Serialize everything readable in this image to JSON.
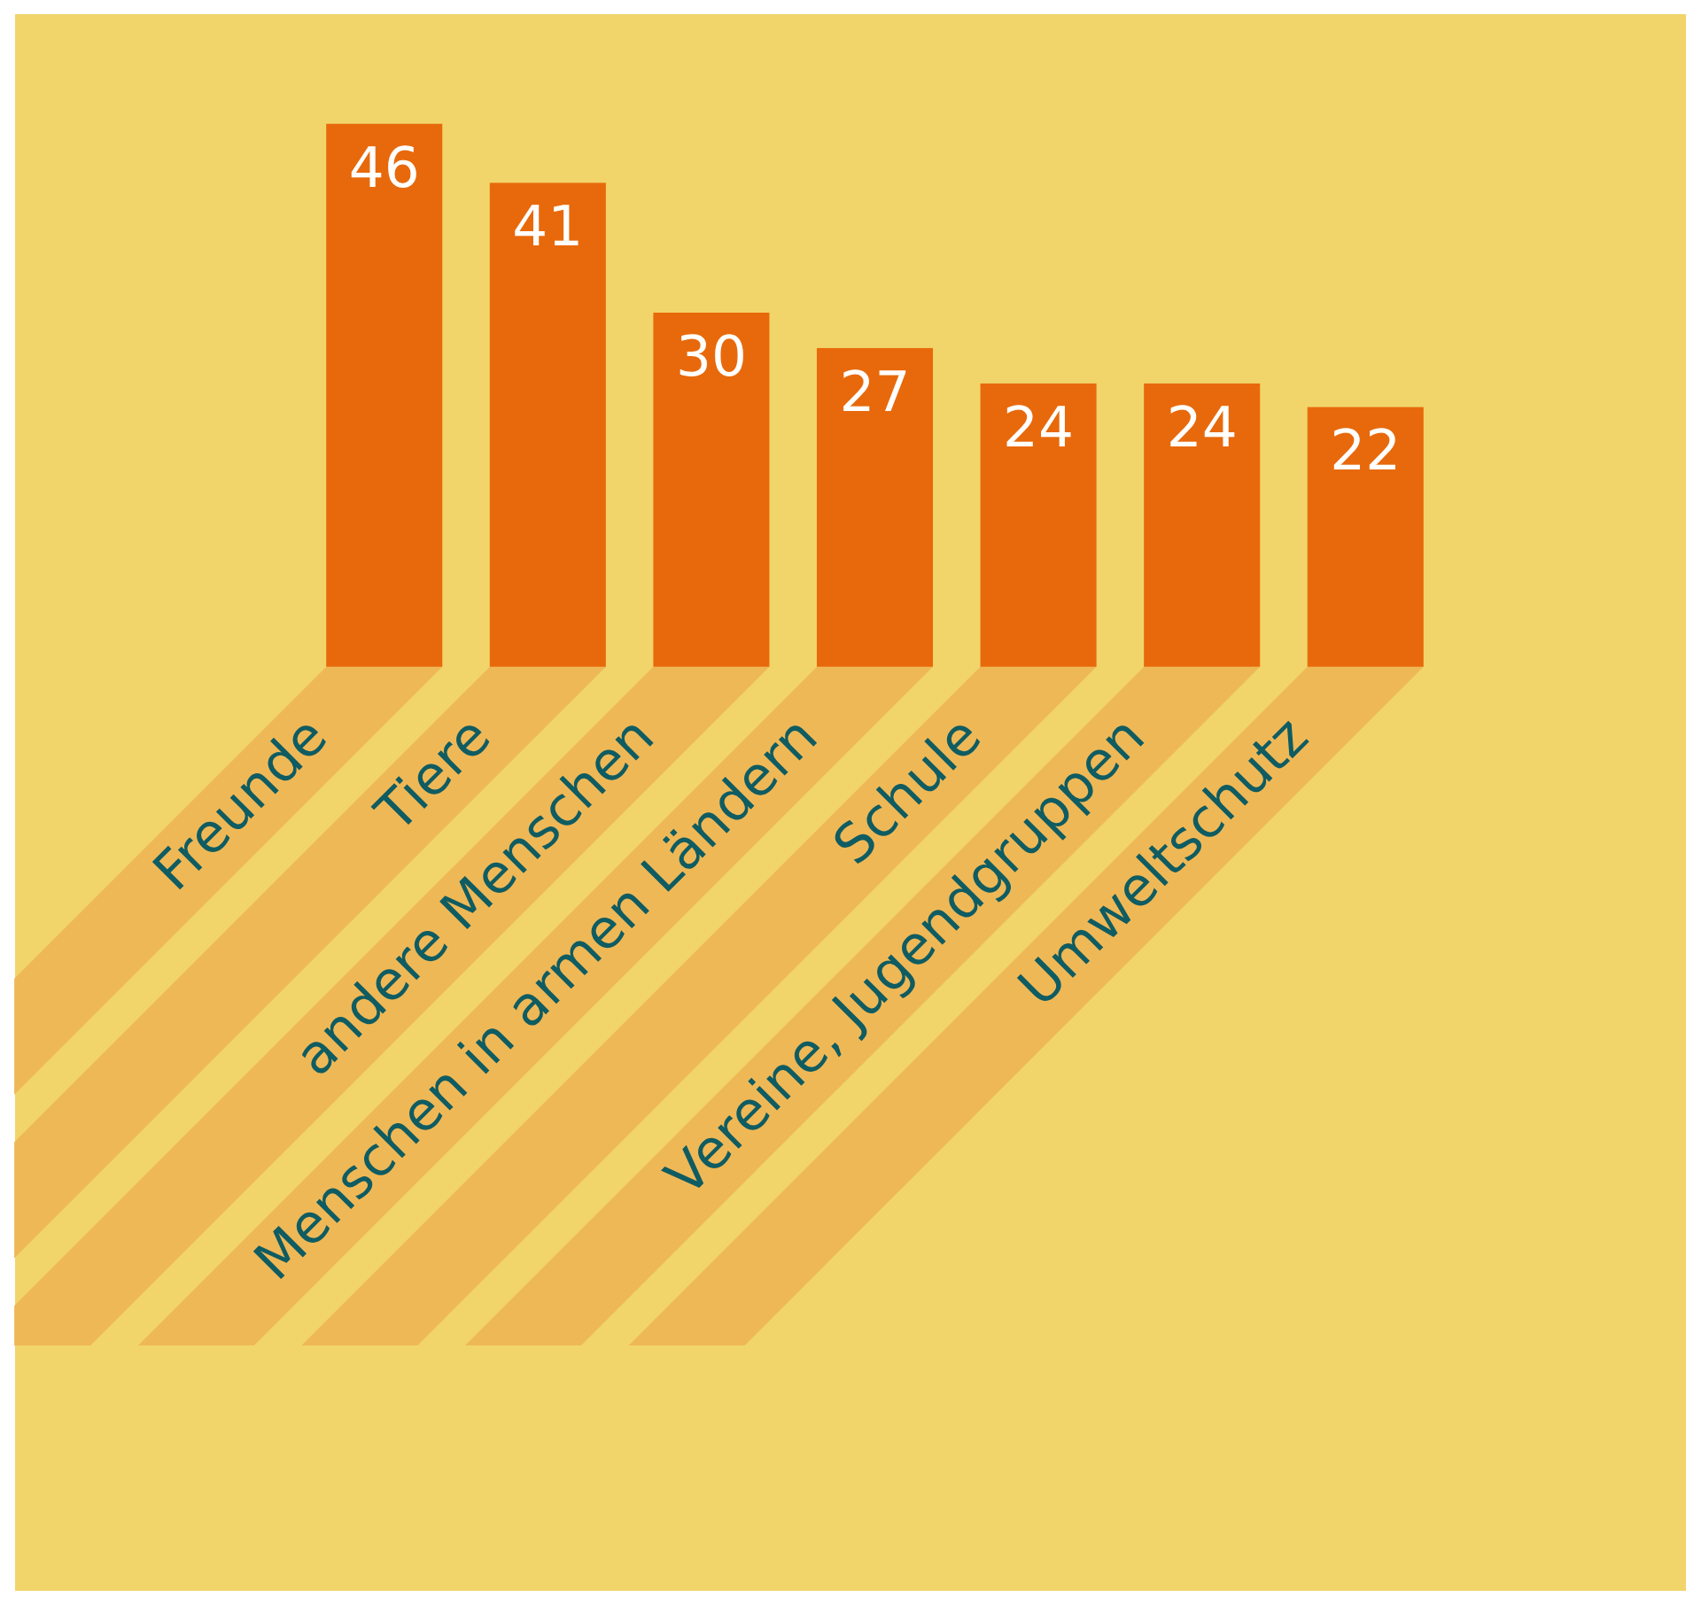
{
  "chart_data": {
    "type": "bar",
    "categories": [
      "Freunde",
      "Tiere",
      "andere Menschen",
      "Menschen in armen Ländern",
      "Schule",
      "Vereine, Jugendgruppen",
      "Umweltschutz"
    ],
    "values": [
      46,
      41,
      30,
      27,
      24,
      24,
      22
    ],
    "color": "#e8690b",
    "data_labels": true
  }
}
